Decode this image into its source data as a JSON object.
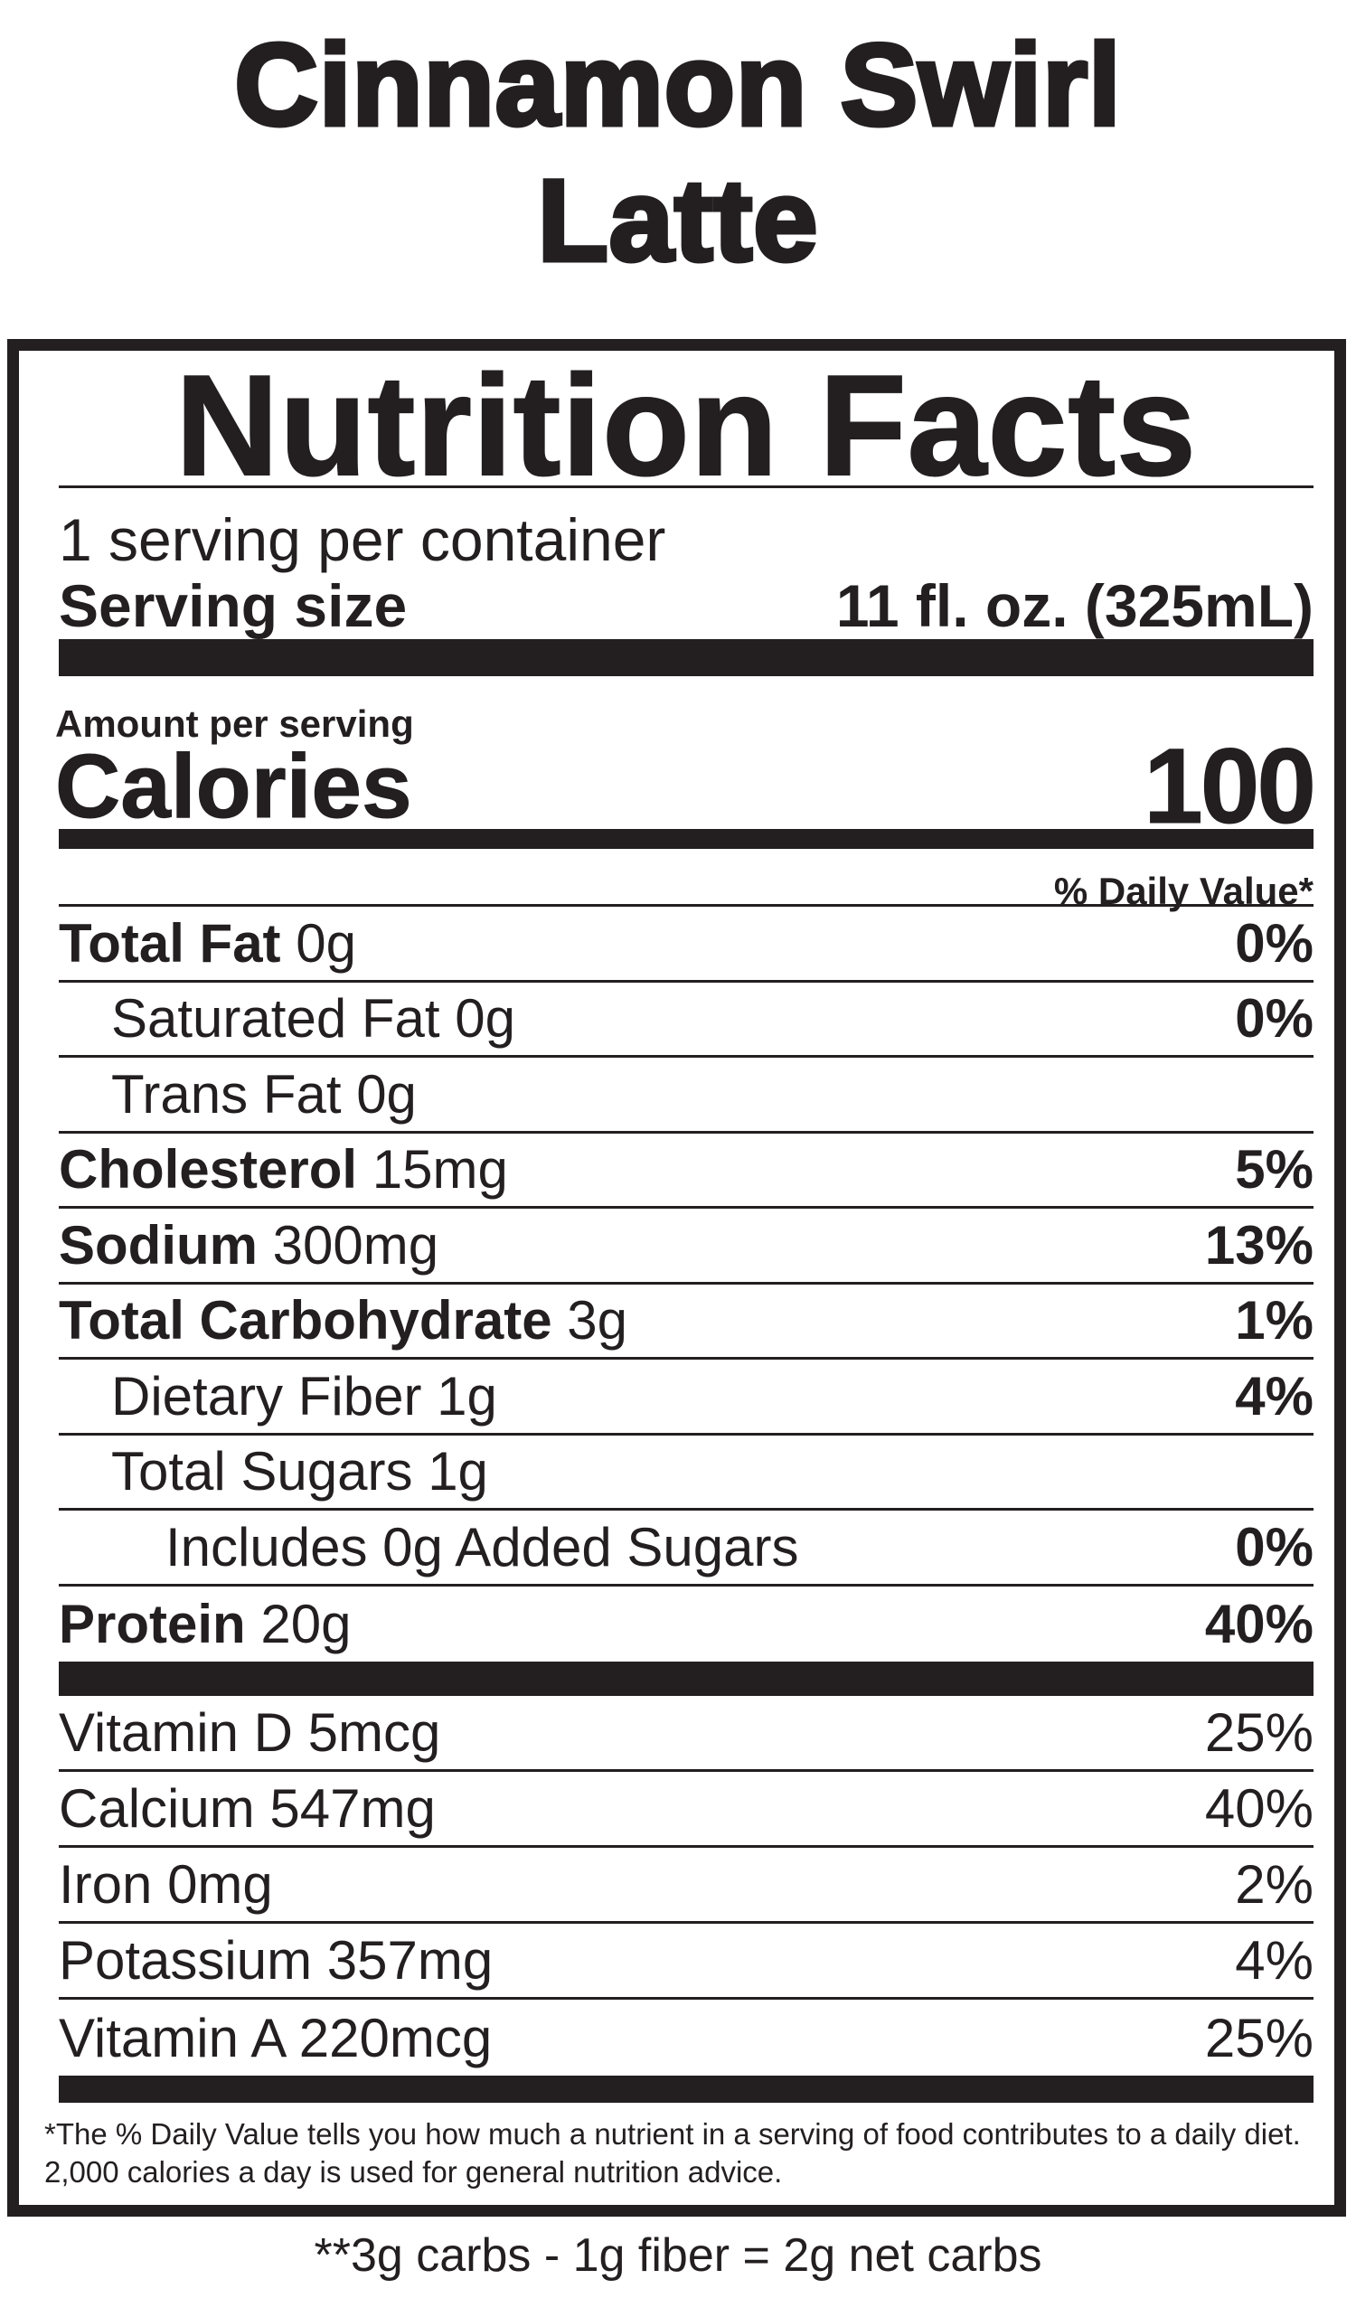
{
  "product_title": [
    "Cinnamon Swirl",
    "Latte"
  ],
  "label": {
    "heading": "Nutrition Facts",
    "servings_per_container": "1 serving per container",
    "serving_size_label": "Serving size",
    "serving_size_value": "11 fl. oz. (325mL)",
    "amount_per_serving": "Amount per serving",
    "calories_label": "Calories",
    "calories_value": "100",
    "daily_value_header": "% Daily Value*",
    "nutrients": [
      {
        "name": "Total Fat",
        "amount": "0g",
        "dv": "0%",
        "bold": true,
        "indent": 0
      },
      {
        "name": "Saturated Fat",
        "amount": "0g",
        "dv": "0%",
        "bold": false,
        "indent": 1
      },
      {
        "name": "Trans Fat",
        "amount": "0g",
        "dv": "",
        "bold": false,
        "indent": 1
      },
      {
        "name": "Cholesterol",
        "amount": "15mg",
        "dv": "5%",
        "bold": true,
        "indent": 0
      },
      {
        "name": "Sodium",
        "amount": "300mg",
        "dv": "13%",
        "bold": true,
        "indent": 0
      },
      {
        "name": "Total Carbohydrate",
        "amount": "3g",
        "dv": "1%",
        "bold": true,
        "indent": 0
      },
      {
        "name": "Dietary Fiber",
        "amount": "1g",
        "dv": "4%",
        "bold": false,
        "indent": 1
      },
      {
        "name": "Total Sugars",
        "amount": "1g",
        "dv": "",
        "bold": false,
        "indent": 1
      },
      {
        "name": "Includes 0g Added Sugars",
        "amount": "",
        "dv": "0%",
        "bold": false,
        "indent": 2
      },
      {
        "name": "Protein",
        "amount": "20g",
        "dv": "40%",
        "bold": true,
        "indent": 0
      }
    ],
    "vitamins": [
      {
        "name": "Vitamin D",
        "amount": "5mcg",
        "dv": "25%"
      },
      {
        "name": "Calcium",
        "amount": "547mg",
        "dv": "40%"
      },
      {
        "name": "Iron",
        "amount": "0mg",
        "dv": "2%"
      },
      {
        "name": "Potassium",
        "amount": "357mg",
        "dv": "4%"
      },
      {
        "name": "Vitamin A",
        "amount": "220mcg",
        "dv": "25%"
      }
    ],
    "footnote_line1": "*The % Daily Value tells you how much a nutrient in a serving of food contributes to a daily diet.",
    "footnote_line2": "2,000 calories a day is used for general nutrition advice."
  },
  "net_carbs_note": "**3g carbs - 1g fiber = 2g net carbs"
}
